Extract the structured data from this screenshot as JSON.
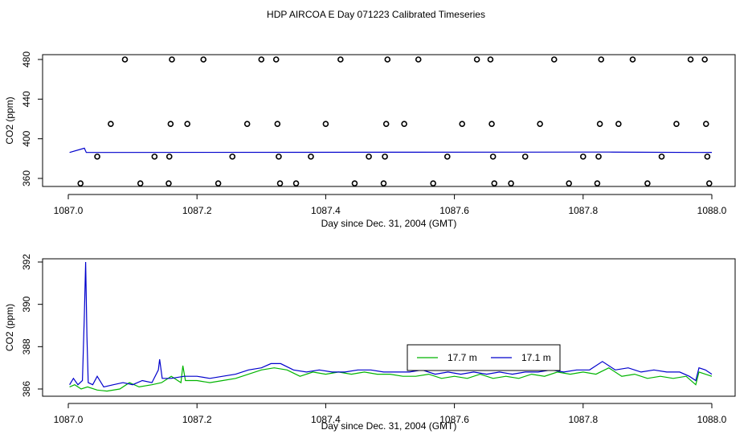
{
  "title": "HDP AIRCOA E  Day 071223  Calibrated Timeseries",
  "colors": {
    "green": "#00b400",
    "blue": "#0000cc",
    "markers": "#000000",
    "frame": "#000000"
  },
  "chart_data": [
    {
      "type": "scatter",
      "xlabel": "Day since Dec. 31, 2004 (GMT)",
      "ylabel": "CO2 (ppm)",
      "xlim": [
        1087.0,
        1088.0
      ],
      "ylim": [
        350,
        485
      ],
      "xticks": [
        1087.0,
        1087.2,
        1087.4,
        1087.6,
        1087.8,
        1088.0
      ],
      "xtick_labels": [
        "1087.0",
        "1087.2",
        "1087.4",
        "1087.6",
        "1087.8",
        "1088.0"
      ],
      "yticks": [
        360,
        400,
        440,
        480
      ],
      "ytick_labels": [
        "360",
        "400",
        "440",
        "480"
      ],
      "grid": false,
      "calibration_points": [
        [
          1087.019,
          355
        ],
        [
          1087.045,
          382
        ],
        [
          1087.066,
          415
        ],
        [
          1087.088,
          480
        ],
        [
          1087.112,
          355
        ],
        [
          1087.134,
          382
        ],
        [
          1087.156,
          355
        ],
        [
          1087.157,
          382
        ],
        [
          1087.159,
          415
        ],
        [
          1087.161,
          480
        ],
        [
          1087.185,
          415
        ],
        [
          1087.21,
          480
        ],
        [
          1087.233,
          355
        ],
        [
          1087.255,
          382
        ],
        [
          1087.278,
          415
        ],
        [
          1087.3,
          480
        ],
        [
          1087.323,
          480
        ],
        [
          1087.325,
          415
        ],
        [
          1087.327,
          382
        ],
        [
          1087.329,
          355
        ],
        [
          1087.354,
          355
        ],
        [
          1087.377,
          382
        ],
        [
          1087.4,
          415
        ],
        [
          1087.423,
          480
        ],
        [
          1087.445,
          355
        ],
        [
          1087.467,
          382
        ],
        [
          1087.49,
          355
        ],
        [
          1087.492,
          382
        ],
        [
          1087.494,
          415
        ],
        [
          1087.496,
          480
        ],
        [
          1087.522,
          415
        ],
        [
          1087.544,
          480
        ],
        [
          1087.567,
          355
        ],
        [
          1087.589,
          382
        ],
        [
          1087.612,
          415
        ],
        [
          1087.635,
          480
        ],
        [
          1087.656,
          480
        ],
        [
          1087.658,
          415
        ],
        [
          1087.66,
          382
        ],
        [
          1087.662,
          355
        ],
        [
          1087.688,
          355
        ],
        [
          1087.71,
          382
        ],
        [
          1087.733,
          415
        ],
        [
          1087.755,
          480
        ],
        [
          1087.778,
          355
        ],
        [
          1087.8,
          382
        ],
        [
          1087.822,
          355
        ],
        [
          1087.824,
          382
        ],
        [
          1087.826,
          415
        ],
        [
          1087.828,
          480
        ],
        [
          1087.855,
          415
        ],
        [
          1087.877,
          480
        ],
        [
          1087.9,
          355
        ],
        [
          1087.922,
          382
        ],
        [
          1087.945,
          415
        ],
        [
          1087.967,
          480
        ],
        [
          1087.989,
          480
        ],
        [
          1087.991,
          415
        ],
        [
          1087.993,
          382
        ],
        [
          1087.996,
          355
        ]
      ],
      "series": [
        {
          "values": [
            [
              1087.002,
              386.2
            ],
            [
              1087.025,
              390.5
            ],
            [
              1087.028,
              386.2
            ],
            [
              1087.5,
              386.4
            ],
            [
              1087.84,
              386.6
            ],
            [
              1087.98,
              386.2
            ],
            [
              1088.0,
              386.3
            ]
          ]
        }
      ]
    },
    {
      "type": "line",
      "xlabel": "Day since Dec. 31, 2004 (GMT)",
      "ylabel": "CO2 (ppm)",
      "xlim": [
        1087.0,
        1088.0
      ],
      "ylim": [
        385.8,
        392.2
      ],
      "xticks": [
        1087.0,
        1087.2,
        1087.4,
        1087.6,
        1087.8,
        1088.0
      ],
      "xtick_labels": [
        "1087.0",
        "1087.2",
        "1087.4",
        "1087.6",
        "1087.8",
        "1088.0"
      ],
      "yticks": [
        386,
        388,
        390,
        392
      ],
      "ytick_labels": [
        "386",
        "388",
        "390",
        "392"
      ],
      "grid": false,
      "legend_position": "center-right",
      "series": [
        {
          "name": "17.7 m",
          "color": "#00b400",
          "values": [
            [
              1087.002,
              386.1
            ],
            [
              1087.01,
              386.2
            ],
            [
              1087.02,
              386.0
            ],
            [
              1087.03,
              386.1
            ],
            [
              1087.045,
              385.95
            ],
            [
              1087.06,
              385.9
            ],
            [
              1087.08,
              386.0
            ],
            [
              1087.095,
              386.3
            ],
            [
              1087.11,
              386.1
            ],
            [
              1087.13,
              386.2
            ],
            [
              1087.145,
              386.3
            ],
            [
              1087.16,
              386.6
            ],
            [
              1087.175,
              386.3
            ],
            [
              1087.178,
              387.1
            ],
            [
              1087.182,
              386.4
            ],
            [
              1087.2,
              386.4
            ],
            [
              1087.22,
              386.3
            ],
            [
              1087.24,
              386.4
            ],
            [
              1087.26,
              386.5
            ],
            [
              1087.28,
              386.7
            ],
            [
              1087.3,
              386.9
            ],
            [
              1087.32,
              387.0
            ],
            [
              1087.34,
              386.9
            ],
            [
              1087.36,
              386.6
            ],
            [
              1087.38,
              386.8
            ],
            [
              1087.4,
              386.7
            ],
            [
              1087.42,
              386.8
            ],
            [
              1087.44,
              386.7
            ],
            [
              1087.46,
              386.8
            ],
            [
              1087.48,
              386.7
            ],
            [
              1087.5,
              386.7
            ],
            [
              1087.52,
              386.6
            ],
            [
              1087.54,
              386.6
            ],
            [
              1087.56,
              386.7
            ],
            [
              1087.58,
              386.5
            ],
            [
              1087.6,
              386.6
            ],
            [
              1087.62,
              386.5
            ],
            [
              1087.64,
              386.7
            ],
            [
              1087.66,
              386.5
            ],
            [
              1087.68,
              386.6
            ],
            [
              1087.7,
              386.5
            ],
            [
              1087.72,
              386.7
            ],
            [
              1087.74,
              386.6
            ],
            [
              1087.76,
              386.8
            ],
            [
              1087.78,
              386.7
            ],
            [
              1087.8,
              386.8
            ],
            [
              1087.82,
              386.7
            ],
            [
              1087.84,
              387.0
            ],
            [
              1087.86,
              386.6
            ],
            [
              1087.88,
              386.7
            ],
            [
              1087.9,
              386.5
            ],
            [
              1087.92,
              386.6
            ],
            [
              1087.94,
              386.5
            ],
            [
              1087.96,
              386.6
            ],
            [
              1087.975,
              386.2
            ],
            [
              1087.98,
              386.8
            ],
            [
              1087.99,
              386.7
            ],
            [
              1088.0,
              386.6
            ]
          ]
        },
        {
          "name": "17.1 m",
          "color": "#0000cc",
          "values": [
            [
              1087.002,
              386.2
            ],
            [
              1087.008,
              386.5
            ],
            [
              1087.015,
              386.2
            ],
            [
              1087.022,
              386.4
            ],
            [
              1087.025,
              389.5
            ],
            [
              1087.027,
              392.0
            ],
            [
              1087.029,
              388.5
            ],
            [
              1087.031,
              386.3
            ],
            [
              1087.038,
              386.2
            ],
            [
              1087.045,
              386.6
            ],
            [
              1087.055,
              386.1
            ],
            [
              1087.07,
              386.2
            ],
            [
              1087.085,
              386.3
            ],
            [
              1087.1,
              386.2
            ],
            [
              1087.115,
              386.4
            ],
            [
              1087.13,
              386.3
            ],
            [
              1087.14,
              386.9
            ],
            [
              1087.142,
              387.4
            ],
            [
              1087.146,
              386.5
            ],
            [
              1087.16,
              386.5
            ],
            [
              1087.18,
              386.6
            ],
            [
              1087.2,
              386.6
            ],
            [
              1087.22,
              386.5
            ],
            [
              1087.24,
              386.6
            ],
            [
              1087.26,
              386.7
            ],
            [
              1087.28,
              386.9
            ],
            [
              1087.3,
              387.0
            ],
            [
              1087.315,
              387.2
            ],
            [
              1087.33,
              387.2
            ],
            [
              1087.35,
              386.9
            ],
            [
              1087.37,
              386.8
            ],
            [
              1087.39,
              386.9
            ],
            [
              1087.41,
              386.8
            ],
            [
              1087.43,
              386.8
            ],
            [
              1087.45,
              386.9
            ],
            [
              1087.47,
              386.9
            ],
            [
              1087.49,
              386.8
            ],
            [
              1087.51,
              386.8
            ],
            [
              1087.53,
              386.8
            ],
            [
              1087.55,
              386.9
            ],
            [
              1087.57,
              386.7
            ],
            [
              1087.59,
              386.8
            ],
            [
              1087.61,
              386.7
            ],
            [
              1087.63,
              386.8
            ],
            [
              1087.65,
              386.7
            ],
            [
              1087.67,
              386.8
            ],
            [
              1087.69,
              386.7
            ],
            [
              1087.71,
              386.8
            ],
            [
              1087.73,
              386.8
            ],
            [
              1087.75,
              386.9
            ],
            [
              1087.77,
              386.8
            ],
            [
              1087.79,
              386.9
            ],
            [
              1087.81,
              386.9
            ],
            [
              1087.83,
              387.3
            ],
            [
              1087.85,
              386.9
            ],
            [
              1087.87,
              387.0
            ],
            [
              1087.89,
              386.8
            ],
            [
              1087.91,
              386.9
            ],
            [
              1087.93,
              386.8
            ],
            [
              1087.95,
              386.8
            ],
            [
              1087.965,
              386.6
            ],
            [
              1087.975,
              386.4
            ],
            [
              1087.98,
              387.0
            ],
            [
              1087.99,
              386.9
            ],
            [
              1088.0,
              386.7
            ]
          ]
        }
      ]
    }
  ]
}
